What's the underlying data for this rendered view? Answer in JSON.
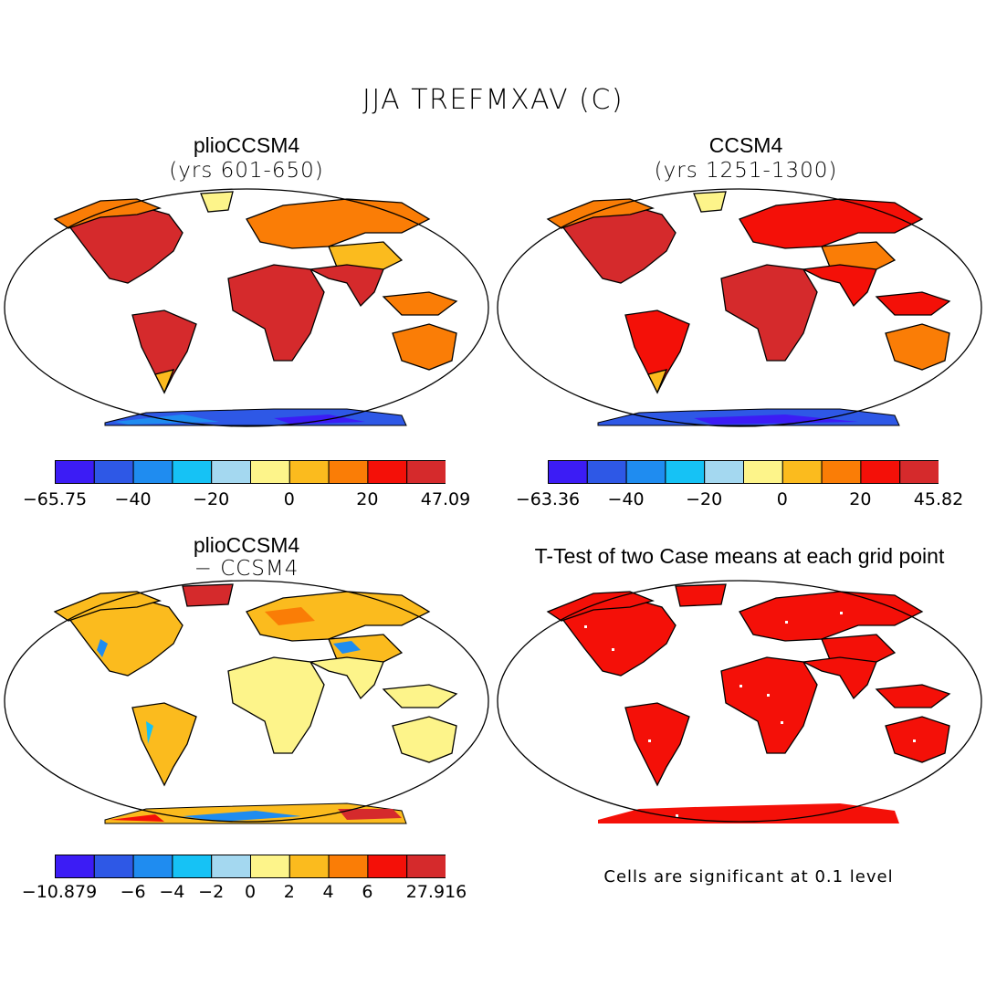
{
  "title": "JJA TREFMXAV (C)",
  "panels": {
    "top_left": {
      "title": "plioCCSM4",
      "subtitle": "(yrs 601-650)"
    },
    "top_right": {
      "title": "CCSM4",
      "subtitle": "(yrs 1251-1300)"
    },
    "bottom_left": {
      "title": "plioCCSM4",
      "subtitle": "− CCSM4"
    },
    "bottom_right": {
      "title": "T-Test of two Case means at each grid point",
      "note": "Cells are significant at 0.1 level"
    }
  },
  "colorbar_colors": [
    "#3c1cf5",
    "#2e58e6",
    "#1f8cf0",
    "#16c2f5",
    "#a4d8f0",
    "#fdf48a",
    "#fbbb1e",
    "#fa7d06",
    "#f41008",
    "#d52a2c"
  ],
  "colorbars": {
    "top_left": [
      "−65.75",
      "−40",
      "−20",
      "0",
      "20",
      "47.09"
    ],
    "top_right": [
      "−63.36",
      "−40",
      "−20",
      "0",
      "20",
      "45.82"
    ],
    "bottom_left": [
      "−10.879",
      "−6",
      "−4",
      "−2",
      "0",
      "2",
      "4",
      "6",
      "27.916"
    ]
  }
}
